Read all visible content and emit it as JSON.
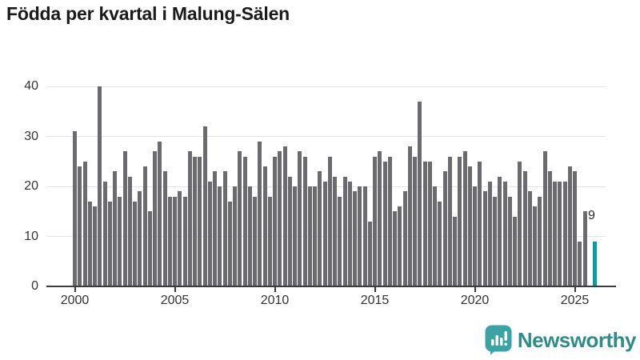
{
  "title": "Födda per kvartal i Malung-Sälen",
  "annotation": {
    "label": "9"
  },
  "branding": {
    "name": "Newsworthy",
    "icon_color": "#3ba3a3",
    "text_color": "#2e8c8c"
  },
  "chart_data": {
    "type": "bar",
    "title": "Födda per kvartal i Malung-Sälen",
    "xlabel": "",
    "ylabel": "",
    "unit": "births per quarter",
    "x_start": "2000-Q1",
    "x_end": "2026-Q1",
    "categories_note": "quarterly values, 4 per year from 2000; null = no bar (missing quarter)",
    "series": [
      {
        "name": "Födda",
        "values": [
          31,
          24,
          25,
          17,
          16,
          40,
          21,
          17,
          23,
          18,
          27,
          22,
          17,
          19,
          24,
          15,
          27,
          29,
          23,
          18,
          18,
          19,
          18,
          27,
          26,
          26,
          32,
          21,
          23,
          20,
          23,
          17,
          20,
          27,
          26,
          20,
          18,
          29,
          24,
          18,
          26,
          27,
          28,
          22,
          20,
          27,
          26,
          20,
          20,
          23,
          21,
          26,
          22,
          18,
          22,
          21,
          19,
          20,
          20,
          13,
          26,
          27,
          25,
          26,
          15,
          16,
          19,
          28,
          26,
          37,
          25,
          25,
          20,
          17,
          23,
          26,
          14,
          26,
          27,
          24,
          20,
          25,
          19,
          21,
          18,
          22,
          21,
          18,
          14,
          25,
          23,
          19,
          16,
          18,
          27,
          23,
          21,
          21,
          21,
          24,
          23,
          9,
          15,
          null,
          9
        ]
      }
    ],
    "highlight": {
      "index": 104,
      "value": 9,
      "label": "9",
      "color": "#00a1a5"
    },
    "bar_color": "#6a6a6f",
    "grid": true,
    "grid_color": "#e4e4e4",
    "axis_color": "#3c3c40",
    "ylim": [
      0,
      40
    ],
    "yticks": [
      0,
      10,
      20,
      30,
      40
    ],
    "xticks": [
      2000,
      2005,
      2010,
      2015,
      2020,
      2025
    ],
    "xtick_labels": [
      "2000",
      "2005",
      "2010",
      "2015",
      "2020",
      "2025"
    ],
    "legend": "none"
  }
}
